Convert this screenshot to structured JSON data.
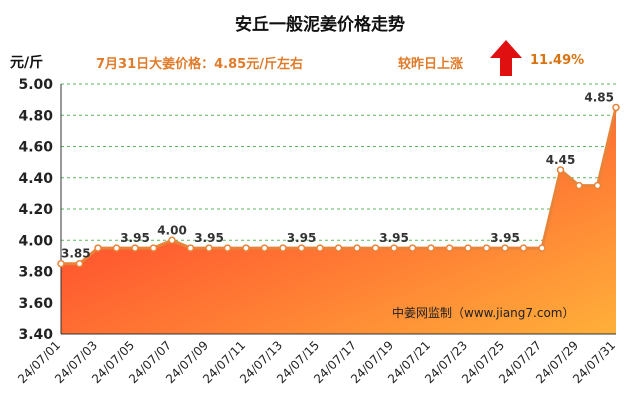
{
  "header": {
    "title": "安丘一般泥姜价格走势",
    "unit": "元/斤",
    "price_note": "7月31日大姜价格：4.85元/斤左右",
    "change_label": "较昨日上涨",
    "change_value": "11.49%",
    "change_direction": "up",
    "arrow_icon": "up-arrow-icon"
  },
  "colors": {
    "accent_text": "#e07b2a",
    "change_value": "#d9730f",
    "arrow": "#e01010",
    "line": "#e8843a",
    "area_top": "#ff2a2a",
    "area_bottom": "#ffb03a",
    "grid": "#5cb85c"
  },
  "watermark": "中姜网监制（www.jiang7.com）",
  "chart_data": {
    "type": "area",
    "title": "安丘一般泥姜价格走势",
    "ylabel": "元/斤",
    "xlabel": "",
    "ylim": [
      3.4,
      5.0
    ],
    "yticks": [
      "3.40",
      "3.60",
      "3.80",
      "4.00",
      "4.20",
      "4.40",
      "4.60",
      "4.80",
      "5.00"
    ],
    "grid": true,
    "x": [
      "24/07/01",
      "24/07/02",
      "24/07/03",
      "24/07/04",
      "24/07/05",
      "24/07/06",
      "24/07/07",
      "24/07/08",
      "24/07/09",
      "24/07/10",
      "24/07/11",
      "24/07/12",
      "24/07/13",
      "24/07/14",
      "24/07/15",
      "24/07/16",
      "24/07/17",
      "24/07/18",
      "24/07/19",
      "24/07/20",
      "24/07/21",
      "24/07/22",
      "24/07/23",
      "24/07/24",
      "24/07/25",
      "24/07/26",
      "24/07/27",
      "24/07/28",
      "24/07/29",
      "24/07/30",
      "24/07/31"
    ],
    "xtick_labels": [
      "24/07/01",
      "24/07/03",
      "24/07/05",
      "24/07/07",
      "24/07/09",
      "24/07/11",
      "24/07/13",
      "24/07/15",
      "24/07/17",
      "24/07/19",
      "24/07/21",
      "24/07/23",
      "24/07/25",
      "24/07/27",
      "24/07/29",
      "24/07/31"
    ],
    "values": [
      3.85,
      3.85,
      3.95,
      3.95,
      3.95,
      3.95,
      4.0,
      3.95,
      3.95,
      3.95,
      3.95,
      3.95,
      3.95,
      3.95,
      3.95,
      3.95,
      3.95,
      3.95,
      3.95,
      3.95,
      3.95,
      3.95,
      3.95,
      3.95,
      3.95,
      3.95,
      3.95,
      4.45,
      4.35,
      4.35,
      4.85
    ],
    "data_labels": [
      {
        "index": 0,
        "text": "3.85"
      },
      {
        "index": 4,
        "text": "3.95"
      },
      {
        "index": 6,
        "text": "4.00"
      },
      {
        "index": 8,
        "text": "3.95"
      },
      {
        "index": 13,
        "text": "3.95"
      },
      {
        "index": 18,
        "text": "3.95"
      },
      {
        "index": 24,
        "text": "3.95"
      },
      {
        "index": 27,
        "text": "4.45"
      },
      {
        "index": 30,
        "text": "4.85"
      }
    ]
  }
}
